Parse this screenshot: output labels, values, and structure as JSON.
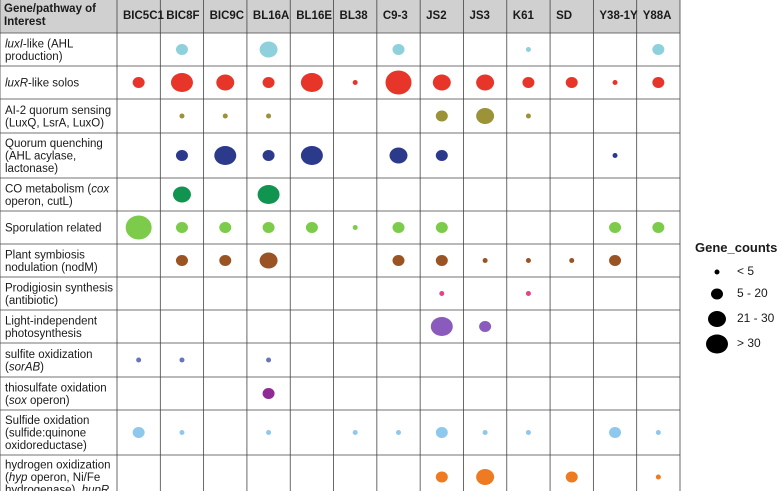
{
  "chart_data": {
    "type": "bubble-matrix",
    "row_header": "Gene/pathway of Interest",
    "columns": [
      "BIC5C1",
      "BIC8F",
      "BIC9C",
      "BL16A",
      "BL16E",
      "BL38",
      "C9-3",
      "JS2",
      "JS3",
      "K61",
      "SD",
      "Y38-1Y",
      "Y88A"
    ],
    "rows": [
      {
        "label_parts": [
          {
            "t": "luxI",
            "i": true
          },
          {
            "t": "-like (AHL"
          },
          {
            "br": true
          },
          {
            "t": "production)"
          }
        ],
        "color": "#8fd0dd",
        "values": [
          0,
          2,
          0,
          3,
          0,
          0,
          2,
          0,
          0,
          1,
          0,
          0,
          2
        ]
      },
      {
        "label_parts": [
          {
            "t": "luxR",
            "i": true
          },
          {
            "t": "-like solos"
          }
        ],
        "color": "#e8352a",
        "values": [
          2,
          4,
          3,
          2,
          4,
          1,
          5,
          3,
          3,
          2,
          2,
          1,
          2
        ]
      },
      {
        "label_parts": [
          {
            "t": "AI-2 quorum sensing"
          },
          {
            "br": true
          },
          {
            "t": "(LuxQ, LsrA, LuxO)"
          }
        ],
        "color": "#9c9238",
        "values": [
          0,
          1,
          1,
          1,
          0,
          0,
          0,
          2,
          3,
          1,
          0,
          0,
          0
        ]
      },
      {
        "label_parts": [
          {
            "t": "Quorum quenching"
          },
          {
            "br": true
          },
          {
            "t": "(AHL acylase,"
          },
          {
            "br": true
          },
          {
            "t": "lactonase)"
          }
        ],
        "color": "#2c3a8c",
        "values": [
          0,
          2,
          4,
          2,
          4,
          0,
          3,
          2,
          0,
          0,
          0,
          1,
          0
        ]
      },
      {
        "label_parts": [
          {
            "t": "CO metabolism ("
          },
          {
            "t": "cox",
            "i": true
          },
          {
            "br": true
          },
          {
            "t": "operon, cutL)"
          }
        ],
        "color": "#11944f",
        "values": [
          0,
          3,
          0,
          4,
          0,
          0,
          0,
          0,
          0,
          0,
          0,
          0,
          0
        ]
      },
      {
        "label_parts": [
          {
            "t": "Sporulation related"
          }
        ],
        "color": "#7ccb4a",
        "values": [
          5,
          2,
          2,
          2,
          2,
          1,
          2,
          2,
          0,
          0,
          0,
          2,
          2
        ]
      },
      {
        "label_parts": [
          {
            "t": "Plant symbiosis"
          },
          {
            "br": true
          },
          {
            "t": "nodulation (nodM)"
          }
        ],
        "color": "#9a5323",
        "values": [
          0,
          2,
          2,
          3,
          0,
          0,
          2,
          2,
          1,
          1,
          1,
          2,
          0
        ]
      },
      {
        "label_parts": [
          {
            "t": "Prodigiosin synthesis"
          },
          {
            "br": true
          },
          {
            "t": "(antibiotic)"
          }
        ],
        "color": "#e0448a",
        "values": [
          0,
          0,
          0,
          0,
          0,
          0,
          0,
          1,
          0,
          1,
          0,
          0,
          0
        ]
      },
      {
        "label_parts": [
          {
            "t": "Light-independent"
          },
          {
            "br": true
          },
          {
            "t": "photosynthesis"
          }
        ],
        "color": "#8a5bbd",
        "values": [
          0,
          0,
          0,
          0,
          0,
          0,
          0,
          4,
          2,
          0,
          0,
          0,
          0
        ]
      },
      {
        "label_parts": [
          {
            "t": "sulfite oxidization"
          },
          {
            "br": true
          },
          {
            "t": "("
          },
          {
            "t": "sorAB",
            "i": true
          },
          {
            "t": ")"
          }
        ],
        "color": "#6a74b8",
        "values": [
          1,
          1,
          0,
          1,
          0,
          0,
          0,
          0,
          0,
          0,
          0,
          0,
          0
        ]
      },
      {
        "label_parts": [
          {
            "t": "thiosulfate oxidation"
          },
          {
            "br": true
          },
          {
            "t": "("
          },
          {
            "t": "sox",
            "i": true
          },
          {
            "t": " operon)"
          }
        ],
        "color": "#8e2c93",
        "values": [
          0,
          0,
          0,
          2,
          0,
          0,
          0,
          0,
          0,
          0,
          0,
          0,
          0
        ]
      },
      {
        "label_parts": [
          {
            "t": "Sulfide oxidation"
          },
          {
            "br": true
          },
          {
            "t": "(sulfide:quinone"
          },
          {
            "br": true
          },
          {
            "t": "oxidoreductase)"
          }
        ],
        "color": "#8fc8ec",
        "values": [
          2,
          1,
          0,
          1,
          0,
          1,
          1,
          2,
          1,
          1,
          0,
          2,
          1
        ]
      },
      {
        "label_parts": [
          {
            "t": "hydrogen oxidization"
          },
          {
            "br": true
          },
          {
            "t": "("
          },
          {
            "t": "hyp",
            "i": true
          },
          {
            "t": " operon, Ni/Fe"
          },
          {
            "br": true
          },
          {
            "t": "hydrogenase), "
          },
          {
            "t": "hupR",
            "i": true
          }
        ],
        "color": "#ee7a22",
        "values": [
          0,
          0,
          0,
          0,
          0,
          0,
          0,
          2,
          3,
          0,
          2,
          0,
          1
        ]
      }
    ],
    "size_scale": {
      "1": [
        2.5,
        2.5
      ],
      "2": [
        6,
        5.5
      ],
      "3": [
        9,
        8
      ],
      "4": [
        11,
        9.5
      ],
      "5": [
        13,
        12
      ]
    },
    "legend": {
      "title": "Gene_counts",
      "items": [
        {
          "label": "< 5",
          "size": 1
        },
        {
          "label": "5 - 20",
          "size": 2
        },
        {
          "label": "21 - 30",
          "size": 3
        },
        {
          "label": "> 30",
          "size": 4
        }
      ]
    }
  }
}
